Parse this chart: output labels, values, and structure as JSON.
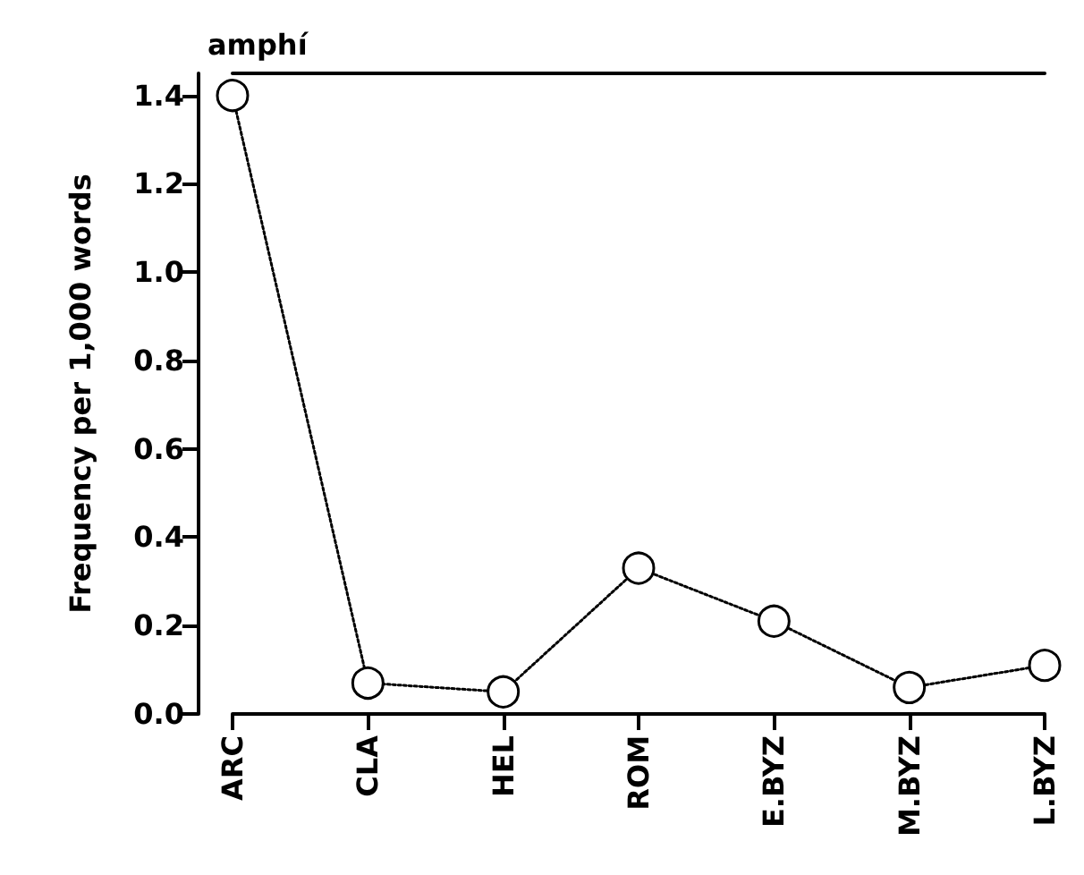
{
  "chart_data": {
    "type": "line",
    "title": "amphí",
    "ylabel": "Frequency per 1,000 words",
    "categories": [
      "ARC",
      "CLA",
      "HEL",
      "ROM",
      "E.BYZ",
      "M.BYZ",
      "L.BYZ"
    ],
    "values": [
      1.4,
      0.07,
      0.05,
      0.33,
      0.21,
      0.06,
      0.11
    ],
    "color": "#000000",
    "marker": "circle",
    "line_style": "dotted",
    "grid": false,
    "ylim": [
      0,
      1.45
    ],
    "yticks": [
      {
        "value": 0,
        "label": "0.0"
      },
      0.2,
      0.4,
      0.6,
      0.8,
      {
        "value": 1,
        "label": "1.0"
      },
      1.2,
      1.4
    ]
  }
}
